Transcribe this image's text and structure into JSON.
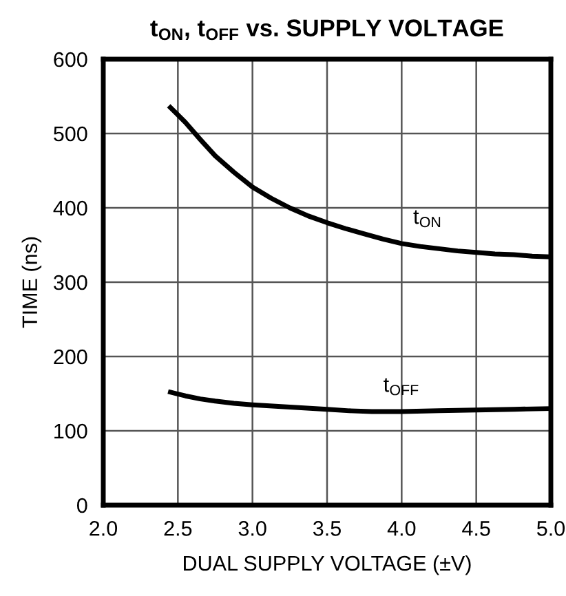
{
  "chart_data": {
    "type": "line",
    "title": "t$_{ON}$, t$_{OFF}$ vs. SUPPLY VOLTAGE",
    "xlabel": "DUAL SUPPLY VOLTAGE (±V)",
    "ylabel": "TIME (ns)",
    "series": [
      {
        "name": "t$_{ON}$",
        "color": "#000000",
        "x": [
          2.45,
          2.55,
          2.65,
          2.75,
          2.875,
          3.0,
          3.125,
          3.25,
          3.375,
          3.5,
          3.625,
          3.75,
          3.875,
          4.0,
          4.125,
          4.25,
          4.375,
          4.5,
          4.625,
          4.75,
          4.875,
          5.0
        ],
        "values": [
          535,
          515,
          492,
          470,
          448,
          428,
          413,
          400,
          389,
          380,
          372,
          365,
          358,
          352,
          348,
          345,
          342,
          340,
          338,
          337,
          335,
          334
        ]
      },
      {
        "name": "t$_{OFF}$",
        "color": "#000000",
        "x": [
          2.45,
          2.55,
          2.65,
          2.75,
          2.875,
          3.0,
          3.25,
          3.5,
          3.65,
          3.8,
          4.0,
          4.25,
          4.5,
          4.75,
          5.0
        ],
        "values": [
          152,
          147,
          143,
          140,
          137,
          135,
          132,
          129,
          127,
          126,
          126,
          127,
          128,
          129,
          130
        ]
      }
    ],
    "xlim": [
      2.0,
      5.0
    ],
    "xticks": [
      {
        "value": 2.0,
        "label": "2.0"
      },
      {
        "value": 2.5,
        "label": "2.5"
      },
      {
        "value": 3.0,
        "label": "3.0"
      },
      {
        "value": 3.5,
        "label": "3.5"
      },
      {
        "value": 4.0,
        "label": "4.0"
      },
      {
        "value": 4.5,
        "label": "4.5"
      },
      {
        "value": 5.0,
        "label": "5.0"
      }
    ],
    "ylim": [
      0,
      600
    ],
    "yticks": [
      0,
      100,
      200,
      300,
      400,
      500,
      600
    ],
    "grid": true,
    "legend": false,
    "marker": "none",
    "line_style": "solid"
  }
}
